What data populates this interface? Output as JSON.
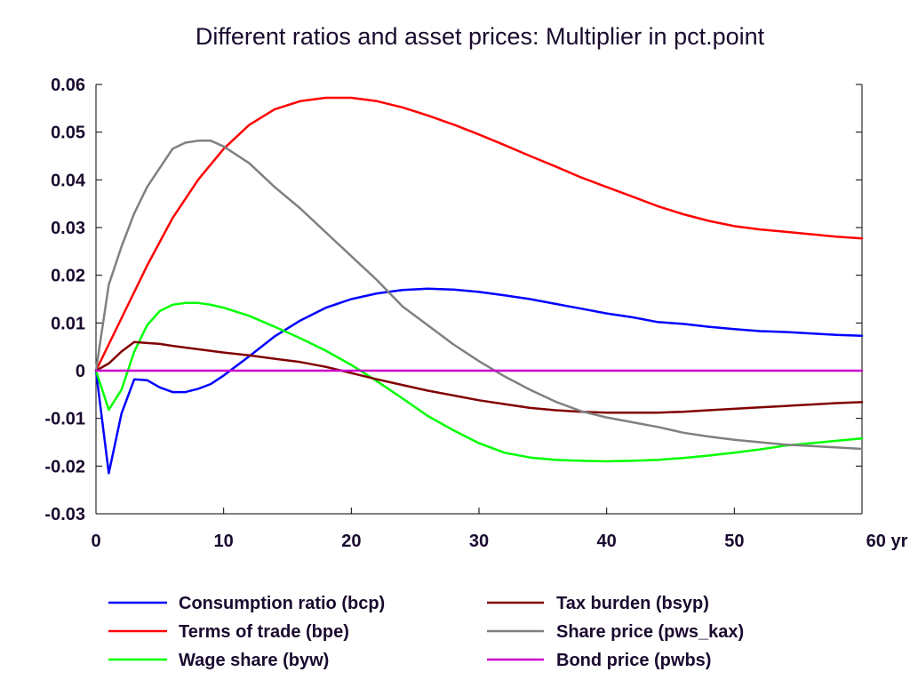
{
  "chart_data": {
    "type": "line",
    "title": "Different ratios and asset prices: Multiplier in pct.point",
    "xlabel": "",
    "ylabel": "",
    "xlim": [
      0,
      60
    ],
    "ylim": [
      -0.03,
      0.06
    ],
    "x_ticks": [
      0,
      10,
      20,
      30,
      40,
      50,
      60
    ],
    "x_tick_labels": [
      "0",
      "10",
      "20",
      "30",
      "40",
      "50",
      "60 yr"
    ],
    "y_ticks": [
      0.06,
      0.05,
      0.04,
      0.03,
      0.02,
      0.01,
      0,
      -0.01,
      -0.02,
      -0.03
    ],
    "y_tick_labels": [
      "0.06",
      "0.05",
      "0.04",
      "0.03",
      "0.02",
      "0.01",
      "0",
      "-0.01",
      "-0.02",
      "-0.03"
    ],
    "grid": false,
    "legend_position": "bottom",
    "series": [
      {
        "name": "Consumption ratio (bcp)",
        "color": "#0000ff",
        "x": [
          0,
          1,
          2,
          3,
          4,
          5,
          6,
          7,
          8,
          9,
          10,
          12,
          14,
          16,
          18,
          20,
          22,
          24,
          26,
          28,
          30,
          32,
          34,
          36,
          38,
          40,
          42,
          44,
          46,
          48,
          50,
          52,
          54,
          56,
          58,
          60
        ],
        "y": [
          0,
          -0.0215,
          -0.009,
          -0.0018,
          -0.002,
          -0.0035,
          -0.0045,
          -0.0045,
          -0.0038,
          -0.0028,
          -0.001,
          0.003,
          0.0072,
          0.0105,
          0.0132,
          0.015,
          0.0162,
          0.0169,
          0.0172,
          0.017,
          0.0165,
          0.0158,
          0.015,
          0.014,
          0.013,
          0.012,
          0.0112,
          0.0102,
          0.0098,
          0.0092,
          0.0087,
          0.0083,
          0.0081,
          0.0078,
          0.0075,
          0.0073
        ]
      },
      {
        "name": "Terms of trade (bpe)",
        "color": "#ff0000",
        "x": [
          0,
          2,
          4,
          6,
          8,
          10,
          12,
          14,
          16,
          18,
          20,
          22,
          24,
          26,
          28,
          30,
          32,
          34,
          36,
          38,
          40,
          42,
          44,
          46,
          48,
          50,
          52,
          54,
          56,
          58,
          60
        ],
        "y": [
          0,
          0.011,
          0.022,
          0.032,
          0.04,
          0.0465,
          0.0515,
          0.0548,
          0.0565,
          0.0572,
          0.0572,
          0.0565,
          0.0552,
          0.0535,
          0.0516,
          0.0495,
          0.0473,
          0.045,
          0.0428,
          0.0405,
          0.0385,
          0.0365,
          0.0345,
          0.0328,
          0.0314,
          0.0303,
          0.0296,
          0.0291,
          0.0286,
          0.0281,
          0.0277
        ]
      },
      {
        "name": "Wage share (byw)",
        "color": "#00ff00",
        "x": [
          0,
          1,
          2,
          3,
          4,
          5,
          6,
          7,
          8,
          9,
          10,
          12,
          14,
          16,
          18,
          20,
          22,
          24,
          26,
          28,
          30,
          32,
          34,
          36,
          38,
          40,
          42,
          44,
          46,
          48,
          50,
          52,
          54,
          56,
          58,
          60
        ],
        "y": [
          0,
          -0.0082,
          -0.004,
          0.004,
          0.0095,
          0.0125,
          0.0138,
          0.0142,
          0.0142,
          0.0138,
          0.0132,
          0.0115,
          0.0092,
          0.0068,
          0.0042,
          0.0012,
          -0.0022,
          -0.0058,
          -0.0095,
          -0.0125,
          -0.0152,
          -0.0172,
          -0.0182,
          -0.0187,
          -0.0189,
          -0.019,
          -0.0189,
          -0.0187,
          -0.0183,
          -0.0178,
          -0.0172,
          -0.0165,
          -0.0157,
          -0.0152,
          -0.0147,
          -0.0142
        ]
      },
      {
        "name": "Tax burden (bsyp)",
        "color": "#800000",
        "x": [
          0,
          1,
          2,
          3,
          4,
          5,
          6,
          8,
          10,
          12,
          14,
          16,
          18,
          20,
          22,
          24,
          26,
          28,
          30,
          32,
          34,
          36,
          38,
          40,
          42,
          44,
          46,
          48,
          50,
          52,
          54,
          56,
          58,
          60
        ],
        "y": [
          0,
          0.0015,
          0.004,
          0.006,
          0.0058,
          0.0056,
          0.0052,
          0.0045,
          0.0038,
          0.0032,
          0.0025,
          0.0018,
          0.0008,
          -0.0005,
          -0.0018,
          -0.003,
          -0.0042,
          -0.0052,
          -0.0062,
          -0.007,
          -0.0078,
          -0.0083,
          -0.0086,
          -0.0088,
          -0.0088,
          -0.0088,
          -0.0086,
          -0.0083,
          -0.008,
          -0.0077,
          -0.0074,
          -0.0071,
          -0.0068,
          -0.0066
        ]
      },
      {
        "name": "Share price (pws_kax)",
        "color": "#808080",
        "x": [
          0,
          1,
          2,
          3,
          4,
          5,
          6,
          7,
          8,
          9,
          10,
          12,
          14,
          16,
          18,
          20,
          22,
          24,
          26,
          28,
          30,
          32,
          34,
          36,
          38,
          40,
          42,
          44,
          46,
          48,
          50,
          52,
          54,
          56,
          58,
          60
        ],
        "y": [
          0,
          0.018,
          0.026,
          0.033,
          0.0385,
          0.0425,
          0.0465,
          0.0478,
          0.0482,
          0.0482,
          0.047,
          0.0435,
          0.0385,
          0.034,
          0.029,
          0.024,
          0.019,
          0.0135,
          0.0095,
          0.0055,
          0.002,
          -0.0012,
          -0.004,
          -0.0065,
          -0.0085,
          -0.0098,
          -0.0108,
          -0.0118,
          -0.013,
          -0.0138,
          -0.0145,
          -0.015,
          -0.0155,
          -0.0158,
          -0.0161,
          -0.0164
        ]
      },
      {
        "name": "Bond price (pwbs)",
        "color": "#cc00cc",
        "x": [
          0,
          60
        ],
        "y": [
          0,
          0
        ]
      }
    ]
  }
}
